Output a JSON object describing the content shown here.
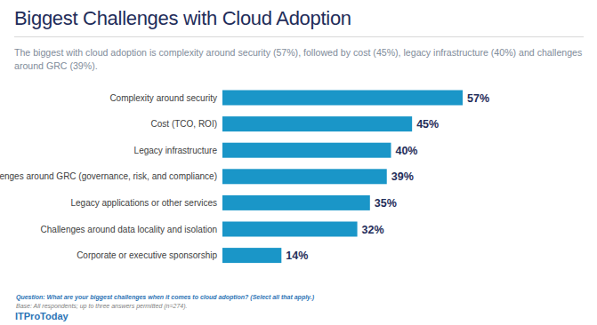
{
  "chart_data": {
    "type": "bar",
    "orientation": "horizontal",
    "title": "Biggest Challenges with Cloud Adoption",
    "subtitle": "The biggest with cloud adoption is complexity around security (57%), followed by cost (45%), legacy infrastructure (40%) and challenges around GRC (39%).",
    "categories": [
      "Complexity around security",
      "Cost (TCO, ROI)",
      "Legacy infrastructure",
      "Challenges around GRC (governance, risk, and compliance)",
      "Legacy applications or other services",
      "Challenges around data locality and isolation",
      "Corporate or executive sponsorship"
    ],
    "values": [
      57,
      45,
      40,
      39,
      35,
      32,
      14
    ],
    "value_labels": [
      "57%",
      "45%",
      "40%",
      "39%",
      "35%",
      "32%",
      "14%"
    ],
    "color": "#1a96c8",
    "xlim": [
      0,
      57
    ],
    "data_labels": true,
    "tick_labels": "y",
    "grid": false,
    "annotations": [
      "Question: What are your biggest challenges when it comes to cloud adoption? (Select all that apply.)",
      "Base: All respondents; up to three answers permitted (n=274).",
      "ITProToday"
    ]
  }
}
